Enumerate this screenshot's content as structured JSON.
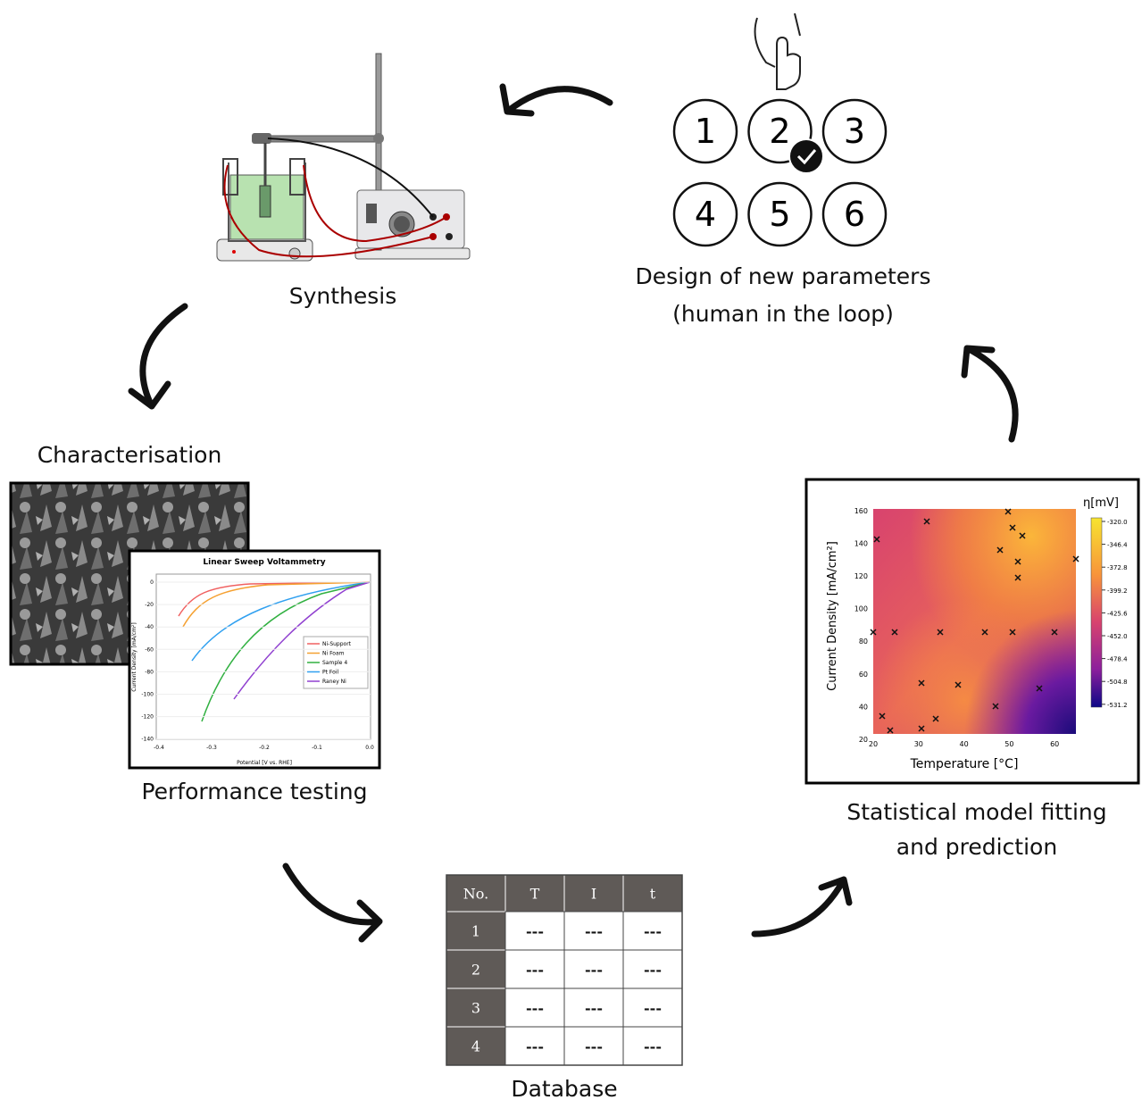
{
  "synthesis": {
    "label": "Synthesis"
  },
  "design": {
    "options": [
      "1",
      "2",
      "3",
      "4",
      "5",
      "6"
    ],
    "label_lines": [
      "Design of new parameters",
      "(human in the loop)"
    ]
  },
  "characterisation": {
    "label": "Characterisation"
  },
  "performance": {
    "label": "Performance testing",
    "plot": {
      "title": "Linear Sweep Voltammetry",
      "x_label": "Potential [V vs. RHE]",
      "y_label": "Current Density [mA/cm²]",
      "x_ticks": [
        "-0.4",
        "-0.3",
        "-0.2",
        "-0.1",
        "0.0"
      ],
      "y_ticks": [
        "0",
        "-20",
        "-40",
        "-60",
        "-80",
        "-100",
        "-120",
        "-140"
      ],
      "legend": [
        "Ni-Support",
        "Ni Foam",
        "Sample 4",
        "Pt Foil",
        "Raney Ni"
      ]
    }
  },
  "database": {
    "label": "Database",
    "headers": [
      "No.",
      "T",
      "I",
      "t"
    ],
    "rows": [
      [
        "1",
        "---",
        "---",
        "---"
      ],
      [
        "2",
        "---",
        "---",
        "---"
      ],
      [
        "3",
        "---",
        "---",
        "---"
      ],
      [
        "4",
        "---",
        "---",
        "---"
      ]
    ]
  },
  "model": {
    "label_lines": [
      "Statistical model fitting",
      "and prediction"
    ],
    "plot": {
      "colorbar_title": "η[mV]",
      "x_label": "Temperature [°C]",
      "y_label": "Current Density [mA/cm²]",
      "x_ticks": [
        "20",
        "30",
        "40",
        "50",
        "60"
      ],
      "y_ticks": [
        "20",
        "40",
        "60",
        "80",
        "100",
        "120",
        "140",
        "160"
      ],
      "colorbar_ticks": [
        "-320.0",
        "-346.4",
        "-372.8",
        "-399.2",
        "-425.6",
        "-452.0",
        "-478.4",
        "-504.8",
        "-531.2"
      ]
    }
  }
}
